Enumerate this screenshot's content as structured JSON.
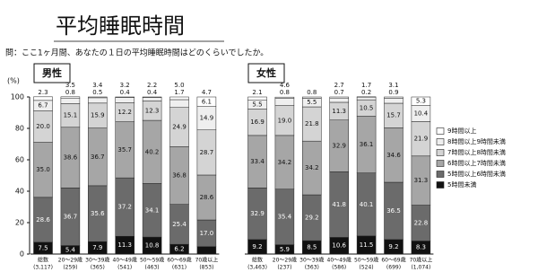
{
  "chart_data": {
    "type": "bar",
    "stacked": true,
    "title": "平均睡眠時間",
    "subtitle": "問：ここ1ヶ月間、あなたの１日の平均睡眠時間はどのくらいでしたか。",
    "ylabel": "(%)",
    "panels": [
      {
        "title": "男性"
      },
      {
        "title": "女性"
      }
    ],
    "categories": [
      "総数",
      "20～29歳",
      "30～39歳",
      "40～49歳",
      "50～59歳",
      "60～69歳",
      "70歳以上",
      "総数",
      "20～29歳",
      "30～39歳",
      "40～49歳",
      "50～59歳",
      "60～69歳",
      "70歳以上"
    ],
    "sample_sizes": [
      "(3,117)",
      "(259)",
      "(365)",
      "(541)",
      "(463)",
      "(631)",
      "(853)",
      "(3,463)",
      "(237)",
      "(363)",
      "(586)",
      "(524)",
      "(699)",
      "(1,074)"
    ],
    "ylim": [
      0,
      100
    ],
    "yticks": [
      0,
      20,
      40,
      60,
      80,
      100
    ],
    "legend": "right",
    "series": [
      {
        "name": "5時間未満",
        "color": "#111111",
        "values": [
          7.5,
          5.4,
          7.9,
          11.3,
          10.8,
          6.2,
          4.7,
          9.2,
          5.9,
          8.5,
          10.6,
          11.5,
          9.2,
          8.3
        ],
        "value_labels": [
          "7.5",
          "5.4",
          "7.9",
          "11.3",
          "10.8",
          "6.2",
          "4.7",
          "9.2",
          "5.9",
          "8.5",
          "10.6",
          "11.5",
          "9.2",
          "8.3"
        ]
      },
      {
        "name": "5時間以上6時間未満",
        "color": "#6b6b6b",
        "values": [
          28.6,
          36.7,
          35.6,
          37.2,
          34.1,
          25.4,
          17.0,
          32.9,
          35.4,
          29.2,
          41.8,
          40.1,
          36.5,
          22.8
        ],
        "value_labels": [
          "28.6",
          "36.7",
          "35.6",
          "37.2",
          "34.1",
          "25.4",
          "17.0",
          "32.9",
          "35.4",
          "29.2",
          "41.8",
          "40.1",
          "36.5",
          "22.8"
        ]
      },
      {
        "name": "6時間以上7時間未満",
        "color": "#a6a6a6",
        "values": [
          35.0,
          38.6,
          36.7,
          35.7,
          40.2,
          36.8,
          28.6,
          33.4,
          34.2,
          34.2,
          32.9,
          36.1,
          34.6,
          31.3
        ],
        "value_labels": [
          "35.0",
          "38.6",
          "36.7",
          "35.7",
          "40.2",
          "36.8",
          "28.6",
          "33.4",
          "34.2",
          "34.2",
          "32.9",
          "36.1",
          "34.6",
          "31.3"
        ]
      },
      {
        "name": "7時間以上8時間未満",
        "color": "#d4d4d4",
        "values": [
          20.0,
          15.1,
          15.9,
          12.2,
          12.3,
          24.9,
          28.7,
          16.9,
          19.0,
          21.8,
          11.3,
          10.5,
          15.7,
          21.9
        ],
        "value_labels": [
          "20.0",
          "15.1",
          "15.9",
          "12.2",
          "12.3",
          "24.9",
          "28.7",
          "16.9",
          "19.0",
          "21.8",
          "11.3",
          "10.5",
          "15.7",
          "21.9"
        ]
      },
      {
        "name": "8時間以上9時間未満",
        "color": "#efefef",
        "values": [
          6.7,
          3.5,
          3.4,
          3.2,
          2.2,
          5.0,
          14.9,
          5.5,
          4.6,
          5.5,
          2.7,
          1.7,
          3.1,
          10.4
        ],
        "value_labels": [
          "6.7",
          "3.5",
          "3.4",
          "3.2",
          "2.2",
          "5.0",
          "14.9",
          "5.5",
          "4.6",
          "5.5",
          "2.7",
          "1.7",
          "3.1",
          "10.4"
        ]
      },
      {
        "name": "9時間以上",
        "color": "#ffffff",
        "values": [
          2.3,
          0.8,
          0.5,
          0.4,
          0.4,
          1.7,
          6.1,
          2.1,
          0.8,
          0.8,
          0.7,
          0.2,
          0.9,
          5.3
        ],
        "value_labels": [
          "2.3",
          "0.8",
          "0.5",
          "0.4",
          "0.4",
          "1.7",
          "6.1",
          "2.1",
          "0.8",
          "0.8",
          "0.7",
          "0.2",
          "0.9",
          "5.3"
        ]
      }
    ]
  }
}
